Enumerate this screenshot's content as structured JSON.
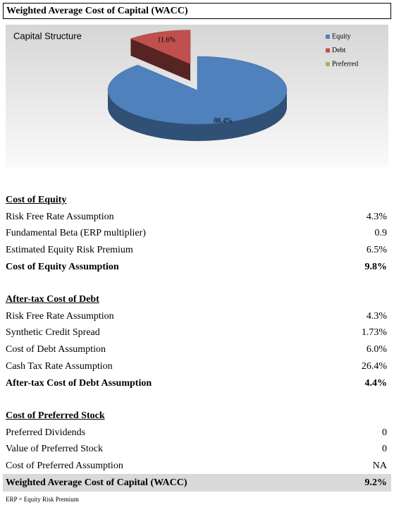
{
  "header": {
    "title": "Weighted Average Cost of Capital (WACC)"
  },
  "chart_data": {
    "type": "pie",
    "title": "Capital Structure",
    "categories": [
      "Equity",
      "Debt",
      "Preferred"
    ],
    "values": [
      88.4,
      11.6,
      0
    ],
    "value_labels": [
      "88.4%",
      "11.6%",
      null
    ],
    "series_colors": [
      "#4f81bd",
      "#c0504d",
      "#9bbb59"
    ]
  },
  "sections": [
    {
      "heading": "Cost of Equity",
      "rows": [
        [
          "Risk Free Rate Assumption",
          "4.3%"
        ],
        [
          "Fundamental Beta (ERP multiplier)",
          "0.9"
        ],
        [
          "Estimated Equity Risk Premium",
          "6.5%"
        ]
      ],
      "total": [
        "Cost of Equity Assumption",
        "9.8%"
      ]
    },
    {
      "heading": "After-tax Cost of Debt",
      "rows": [
        [
          "Risk Free Rate Assumption",
          "4.3%"
        ],
        [
          "Synthetic Credit Spread",
          "1.73%"
        ],
        [
          "Cost of Debt Assumption",
          "6.0%"
        ],
        [
          "Cash Tax Rate Assumption",
          "26.4%"
        ]
      ],
      "total": [
        "After-tax Cost of Debt Assumption",
        "4.4%"
      ]
    },
    {
      "heading": "Cost of Preferred Stock",
      "rows": [
        [
          "Preferred Dividends",
          "0"
        ],
        [
          "Value of Preferred Stock",
          "0"
        ],
        [
          "Cost of Preferred Assumption",
          "NA"
        ]
      ]
    }
  ],
  "result": [
    "Weighted Average Cost of Capital (WACC)",
    "9.2%"
  ],
  "footnote": "ERP = Equity Risk Premium"
}
